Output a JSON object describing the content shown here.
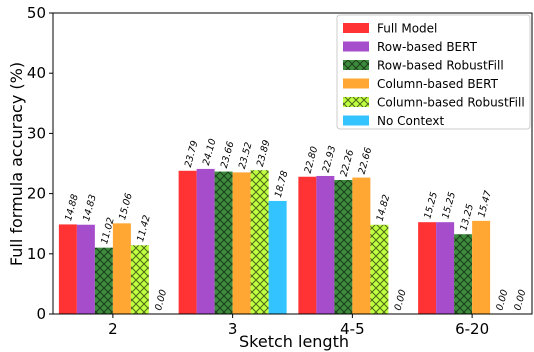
{
  "chart_data": {
    "type": "bar",
    "xlabel": "Sketch length",
    "ylabel": "Full formula accuracy (%)",
    "ylim": [
      0,
      50
    ],
    "yticks": [
      0,
      10,
      20,
      30,
      40,
      50
    ],
    "categories": [
      "2",
      "3",
      "4-5",
      "6-20"
    ],
    "grid": false,
    "legend_position": "top-right",
    "series": [
      {
        "name": "Full Model",
        "color": "#ff3333",
        "hatch": "none",
        "values": [
          14.88,
          23.79,
          22.8,
          15.25
        ]
      },
      {
        "name": "Row-based BERT",
        "color": "#a64dcc",
        "hatch": "none",
        "values": [
          14.83,
          24.1,
          22.93,
          15.25
        ]
      },
      {
        "name": "Row-based RobustFill",
        "color": "#3d8c3d",
        "hatch": "cross",
        "values": [
          11.02,
          23.66,
          22.26,
          13.25
        ]
      },
      {
        "name": "Column-based BERT",
        "color": "#ffa633",
        "hatch": "none",
        "values": [
          15.06,
          23.52,
          22.66,
          15.47
        ]
      },
      {
        "name": "Column-based RobustFill",
        "color": "#bfff40",
        "hatch": "cross",
        "values": [
          11.42,
          23.89,
          14.82,
          0.0
        ]
      },
      {
        "name": "No Context",
        "color": "#33c4ff",
        "hatch": "none",
        "values": [
          0.0,
          18.78,
          0.0,
          0.0
        ]
      }
    ],
    "value_labels": [
      [
        "14.88",
        "14.83",
        "11.02",
        "15.06",
        "11.42",
        "0.00"
      ],
      [
        "23.79",
        "24.10",
        "23.66",
        "23.52",
        "23.89",
        "18.78"
      ],
      [
        "22.80",
        "22.93",
        "22.26",
        "22.66",
        "14.82",
        "0.00"
      ],
      [
        "15.25",
        "15.25",
        "13.25",
        "15.47",
        "0.00",
        "0.00"
      ]
    ]
  }
}
